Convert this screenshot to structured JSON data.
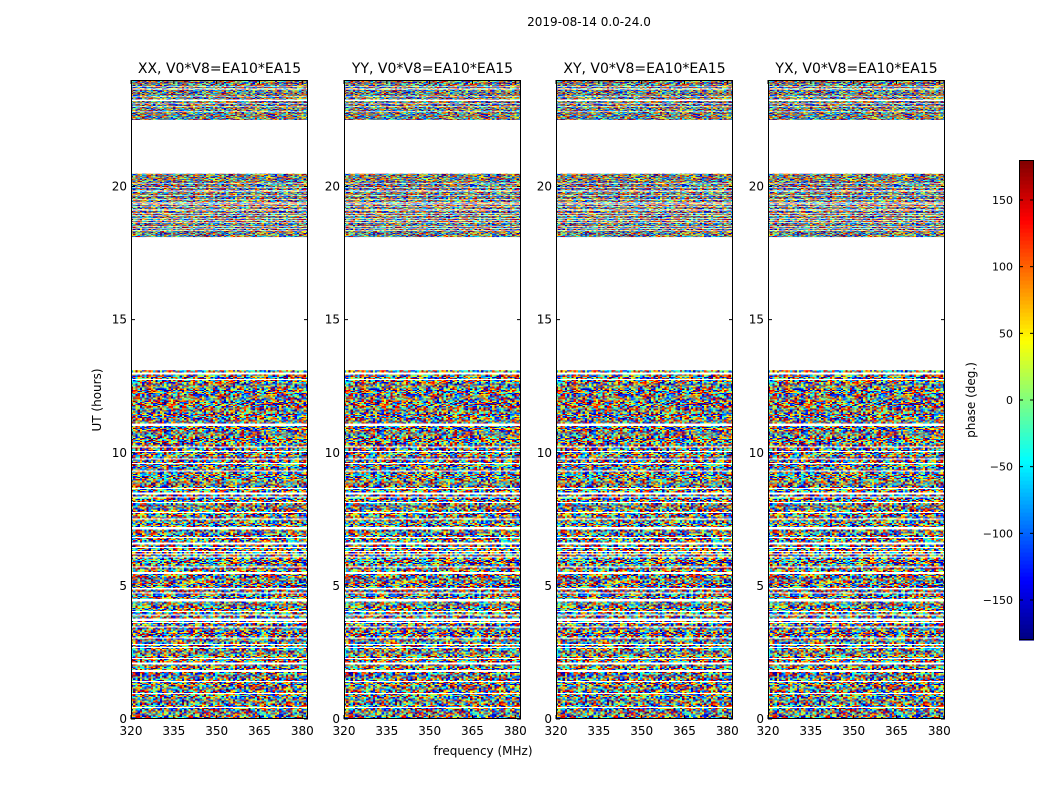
{
  "figure_title": "2019-08-14 0.0-24.0",
  "colors": {
    "background": "#ffffff",
    "axis": "#000000"
  },
  "chart_data": {
    "type": "heatmap",
    "title": "2019-08-14 0.0-24.0",
    "xlabel": "frequency (MHz)",
    "ylabel": "UT (hours)",
    "xlim": [
      320,
      382
    ],
    "ylim": [
      0,
      24
    ],
    "xticks": [
      320,
      335,
      350,
      365,
      380
    ],
    "yticks": [
      0,
      5,
      10,
      15,
      20
    ],
    "panels": [
      {
        "title": "XX, V0*V8=EA10*EA15",
        "pol": "XX"
      },
      {
        "title": "YY, V0*V8=EA10*EA15",
        "pol": "YY"
      },
      {
        "title": "XY, V0*V8=EA10*EA15",
        "pol": "XY"
      },
      {
        "title": "YX, V0*V8=EA10*EA15",
        "pol": "YX"
      }
    ],
    "data_hour_ranges": [
      [
        0,
        13.1
      ],
      [
        18.1,
        20.5
      ],
      [
        22.5,
        24
      ]
    ],
    "empty_hour_ranges": [
      [
        13.1,
        18.1
      ],
      [
        20.5,
        22.5
      ]
    ],
    "colorbar": {
      "label": "phase (deg.)",
      "range": [
        -180,
        180
      ],
      "ticks": [
        -150,
        -100,
        -50,
        0,
        50,
        100,
        150
      ],
      "tick_labels": [
        "−150",
        "−100",
        "−50",
        "0",
        "50",
        "100",
        "150"
      ],
      "colormap": "jet"
    }
  }
}
